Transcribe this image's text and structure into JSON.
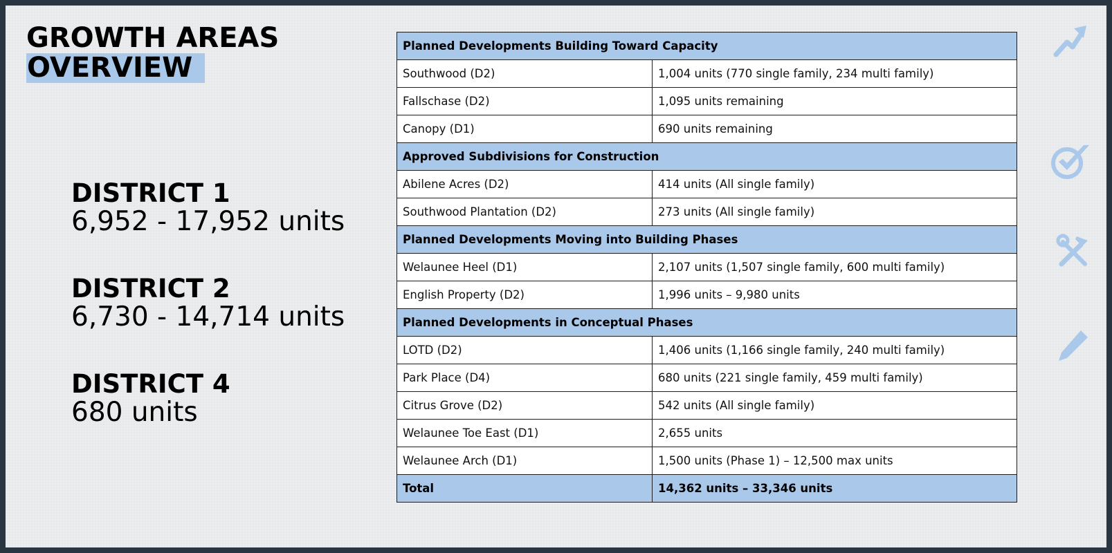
{
  "title": {
    "line1": "GROWTH AREAS",
    "line2": "OVERVIEW"
  },
  "districts": [
    {
      "name": "DISTRICT 1",
      "units": "6,952 - 17,952 units"
    },
    {
      "name": "DISTRICT 2",
      "units": "6,730 - 14,714 units"
    },
    {
      "name": "DISTRICT 4",
      "units": "680 units"
    }
  ],
  "table": {
    "sections": [
      {
        "header": "Planned Developments Building Toward Capacity",
        "rows": [
          [
            "Southwood (D2)",
            "1,004 units (770 single family, 234 multi family)"
          ],
          [
            "Fallschase (D2)",
            "1,095 units remaining"
          ],
          [
            "Canopy (D1)",
            "690 units remaining"
          ]
        ]
      },
      {
        "header": "Approved Subdivisions for Construction",
        "rows": [
          [
            "Abilene Acres (D2)",
            "414 units (All single family)"
          ],
          [
            "Southwood Plantation (D2)",
            "273 units (All single family)"
          ]
        ]
      },
      {
        "header": "Planned Developments Moving into Building Phases",
        "rows": [
          [
            "Welaunee Heel (D1)",
            "2,107 units (1,507 single family, 600 multi family)"
          ],
          [
            "English Property (D2)",
            "1,996 units – 9,980 units"
          ]
        ]
      },
      {
        "header": "Planned Developments in Conceptual Phases",
        "rows": [
          [
            "LOTD (D2)",
            "1,406 units (1,166 single family, 240 multi family)"
          ],
          [
            "Park Place (D4)",
            "680 units (221 single family, 459 multi family)"
          ],
          [
            "Citrus Grove (D2)",
            "542 units (All single family)"
          ],
          [
            "Welaunee Toe East (D1)",
            "2,655 units"
          ],
          [
            "Welaunee Arch (D1)",
            "1,500 units (Phase 1) – 12,500 max units"
          ]
        ]
      }
    ],
    "total": {
      "label": "Total",
      "value": "14,362 units – 33,346 units"
    }
  },
  "icons": [
    "trend-up-arrow-icon",
    "checkmark-circle-icon",
    "tools-icon",
    "pencil-icon"
  ],
  "colors": {
    "accent": "#a9c8ea",
    "icon": "#a9c8ea",
    "background": "#ebeced"
  }
}
